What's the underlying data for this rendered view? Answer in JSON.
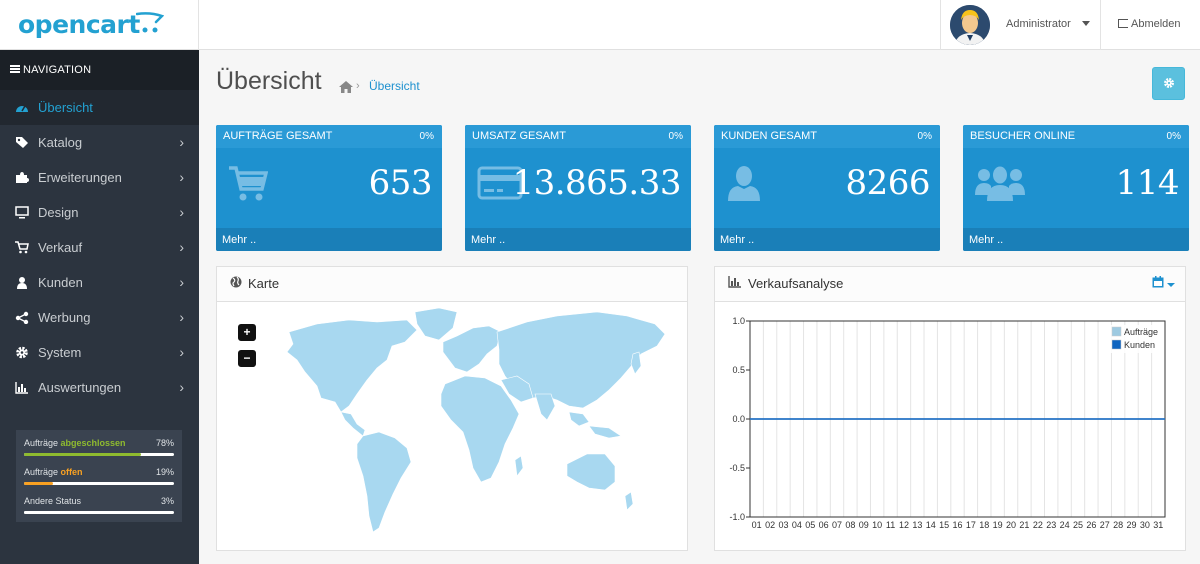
{
  "header": {
    "logo_text": "opencart",
    "user_name": "Administrator",
    "logout_label": "Abmelden"
  },
  "nav": {
    "title": "NAVIGATION",
    "items": [
      {
        "label": "Übersicht",
        "icon": "dashboard-icon",
        "active": true
      },
      {
        "label": "Katalog",
        "icon": "tags-icon"
      },
      {
        "label": "Erweiterungen",
        "icon": "puzzle-icon"
      },
      {
        "label": "Design",
        "icon": "monitor-icon"
      },
      {
        "label": "Verkauf",
        "icon": "cart-icon"
      },
      {
        "label": "Kunden",
        "icon": "user-icon"
      },
      {
        "label": "Werbung",
        "icon": "share-icon"
      },
      {
        "label": "System",
        "icon": "cog-icon"
      },
      {
        "label": "Auswertungen",
        "icon": "bar-chart-icon"
      }
    ]
  },
  "order_status": [
    {
      "prefix": "Aufträge ",
      "highlight": "abgeschlossen",
      "percent": "78%",
      "value": 0.78,
      "color": "#8fbb2f"
    },
    {
      "prefix": "Aufträge ",
      "highlight": "offen",
      "percent": "19%",
      "value": 0.19,
      "color": "#f9a122"
    },
    {
      "prefix": "Andere Status",
      "highlight": "",
      "percent": "3%",
      "value": 0.03,
      "color": "#ffffff"
    }
  ],
  "page": {
    "title": "Übersicht",
    "breadcrumb_sep": "›",
    "breadcrumb": "Übersicht"
  },
  "tiles": [
    {
      "title": "AUFTRÄGE GESAMT",
      "percent": "0%",
      "value": "653",
      "footer": "Mehr ..",
      "icon": "shopping-cart-icon"
    },
    {
      "title": "UMSATZ GESAMT",
      "percent": "0%",
      "value": "13.865.33",
      "footer": "Mehr ..",
      "icon": "credit-card-icon"
    },
    {
      "title": "KUNDEN GESAMT",
      "percent": "0%",
      "value": "8266",
      "footer": "Mehr ..",
      "icon": "user-icon"
    },
    {
      "title": "BESUCHER ONLINE",
      "percent": "0%",
      "value": "114",
      "footer": "Mehr ..",
      "icon": "users-icon"
    }
  ],
  "map_panel": {
    "title": "Karte",
    "zoom_in": "+",
    "zoom_out": "−"
  },
  "chart_panel": {
    "title": "Verkaufsanalyse"
  },
  "colors": {
    "primary": "#1e91cf",
    "sidebar": "#2c343f",
    "orders_series": "#9ecae1",
    "customers_series": "#1065c0"
  },
  "chart_data": {
    "type": "line",
    "title": "",
    "xlabel": "",
    "ylabel": "",
    "x": [
      "01",
      "02",
      "03",
      "04",
      "05",
      "06",
      "07",
      "08",
      "09",
      "10",
      "11",
      "12",
      "13",
      "14",
      "15",
      "16",
      "17",
      "18",
      "19",
      "20",
      "21",
      "22",
      "23",
      "24",
      "25",
      "26",
      "27",
      "28",
      "29",
      "30",
      "31"
    ],
    "ylim": [
      -1.0,
      1.0
    ],
    "yticks": [
      "1.0",
      "0.5",
      "0.0",
      "-0.5",
      "-1.0"
    ],
    "series": [
      {
        "name": "Aufträge",
        "values": [
          0,
          0,
          0,
          0,
          0,
          0,
          0,
          0,
          0,
          0,
          0,
          0,
          0,
          0,
          0,
          0,
          0,
          0,
          0,
          0,
          0,
          0,
          0,
          0,
          0,
          0,
          0,
          0,
          0,
          0,
          0
        ]
      },
      {
        "name": "Kunden",
        "values": [
          0,
          0,
          0,
          0,
          0,
          0,
          0,
          0,
          0,
          0,
          0,
          0,
          0,
          0,
          0,
          0,
          0,
          0,
          0,
          0,
          0,
          0,
          0,
          0,
          0,
          0,
          0,
          0,
          0,
          0,
          0
        ]
      }
    ],
    "grid": true,
    "legend": "top-right"
  }
}
